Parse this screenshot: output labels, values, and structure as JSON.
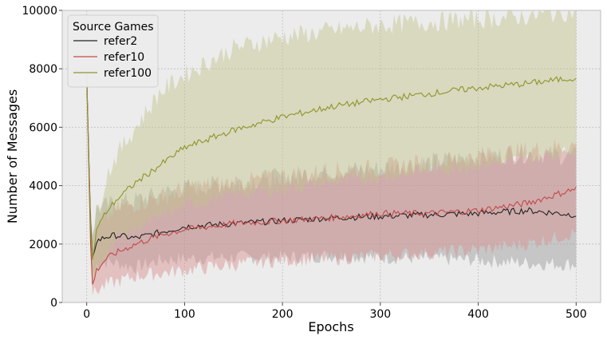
{
  "chart_data": {
    "type": "line",
    "xlabel": "Epochs",
    "ylabel": "Number of Messages",
    "xlim": [
      -25,
      525
    ],
    "ylim": [
      0,
      10000
    ],
    "xticks": [
      0,
      100,
      200,
      300,
      400,
      500
    ],
    "yticks": [
      0,
      2000,
      4000,
      6000,
      8000,
      10000
    ],
    "grid": true,
    "legend": {
      "title": "Source Games",
      "placement": "top-left"
    },
    "series": [
      {
        "name": "refer2",
        "color": "#222222",
        "band_color": "#9a9a9a",
        "x": [
          0,
          5,
          10,
          20,
          30,
          50,
          75,
          100,
          150,
          200,
          250,
          300,
          350,
          400,
          450,
          500
        ],
        "mean": [
          7800,
          1400,
          2100,
          2250,
          2300,
          2200,
          2400,
          2600,
          2700,
          2800,
          2900,
          2950,
          3000,
          3050,
          3150,
          3000
        ],
        "lower": [
          7800,
          900,
          1300,
          1400,
          1350,
          1200,
          1450,
          1500,
          1550,
          1550,
          1600,
          1550,
          1500,
          1450,
          1350,
          1300
        ],
        "upper": [
          7800,
          2100,
          3200,
          3300,
          3400,
          3500,
          3700,
          3900,
          4100,
          4300,
          4500,
          4600,
          4800,
          5000,
          5100,
          5000
        ]
      },
      {
        "name": "refer10",
        "color": "#c24a4a",
        "band_color": "#d98e8e",
        "x": [
          0,
          5,
          10,
          20,
          30,
          50,
          75,
          100,
          150,
          200,
          250,
          300,
          350,
          400,
          450,
          500
        ],
        "mean": [
          7800,
          500,
          1100,
          1500,
          1700,
          2000,
          2300,
          2500,
          2700,
          2800,
          2900,
          3050,
          3050,
          3150,
          3400,
          3900
        ],
        "lower": [
          7800,
          200,
          400,
          600,
          700,
          900,
          1000,
          1100,
          1300,
          1450,
          1500,
          1600,
          1700,
          1800,
          2000,
          2400
        ],
        "upper": [
          7800,
          1200,
          2400,
          2900,
          3200,
          3400,
          3600,
          3900,
          4100,
          4300,
          4500,
          4600,
          4800,
          5000,
          5200,
          5400
        ]
      },
      {
        "name": "refer100",
        "color": "#8f9428",
        "band_color": "#c2c48a",
        "x": [
          0,
          5,
          10,
          20,
          30,
          50,
          75,
          100,
          150,
          200,
          250,
          300,
          350,
          400,
          450,
          500
        ],
        "mean": [
          7800,
          1200,
          2500,
          3100,
          3500,
          4100,
          4700,
          5300,
          5900,
          6350,
          6700,
          6950,
          7150,
          7350,
          7500,
          7700
        ],
        "lower": [
          7800,
          400,
          1000,
          1700,
          2200,
          2500,
          2900,
          3300,
          3700,
          3900,
          4100,
          4300,
          4500,
          4700,
          4900,
          5200
        ],
        "upper": [
          7800,
          2000,
          3000,
          4300,
          5000,
          6000,
          7200,
          7800,
          8700,
          9100,
          9300,
          9500,
          9600,
          9700,
          9800,
          10000
        ]
      }
    ]
  }
}
